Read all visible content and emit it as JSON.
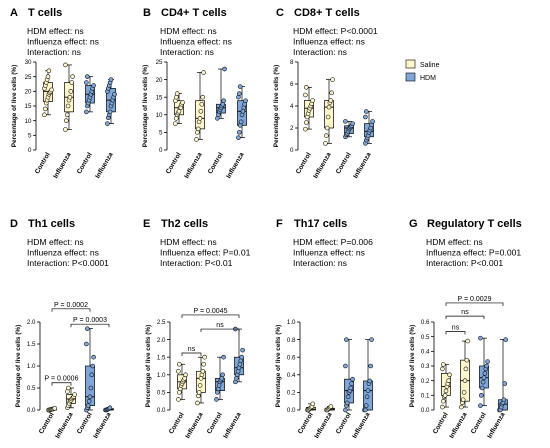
{
  "legend": {
    "items": [
      {
        "label": "Saline",
        "color": "#FFF7CC"
      },
      {
        "label": "HDM",
        "color": "#7EA6D9"
      }
    ]
  },
  "chart_data": [
    {
      "type": "box",
      "letter": "A",
      "title": "T cells",
      "stats": [
        "HDM effect: ns",
        "Influenza effect: ns",
        "Interaction: ns"
      ],
      "ylabel": "Percentage of live cells (%)",
      "ylim": [
        0,
        30
      ],
      "yticks": [
        0,
        5,
        10,
        15,
        20,
        25,
        30
      ],
      "categories": [
        "Control",
        "Influenza",
        "Control",
        "Influenza"
      ],
      "groups": [
        {
          "name": "Saline",
          "category": "Control",
          "q1": 16.5,
          "median": 20,
          "q3": 23,
          "min": 12,
          "max": 27,
          "points": [
            12,
            14,
            16,
            17,
            18,
            19,
            19.5,
            20,
            20.5,
            21,
            22,
            23,
            24,
            25,
            27
          ]
        },
        {
          "name": "Saline",
          "category": "Influenza",
          "q1": 13,
          "median": 18,
          "q3": 23,
          "min": 7,
          "max": 29,
          "points": [
            7,
            10,
            12,
            15,
            17,
            18,
            20,
            23,
            25,
            29
          ]
        },
        {
          "name": "HDM",
          "category": "Control",
          "q1": 16,
          "median": 19,
          "q3": 22,
          "min": 13,
          "max": 25,
          "points": [
            13,
            15,
            16,
            17,
            18,
            19,
            20,
            21,
            22,
            23,
            25
          ]
        },
        {
          "name": "HDM",
          "category": "Influenza",
          "q1": 13,
          "median": 17,
          "q3": 21,
          "min": 9,
          "max": 24,
          "points": [
            9,
            11,
            12,
            13,
            15,
            16,
            17,
            18,
            19,
            20,
            21,
            22,
            23,
            24
          ]
        }
      ],
      "brackets": []
    },
    {
      "type": "box",
      "letter": "B",
      "title": "CD4+ T cells",
      "stats": [
        "HDM effect: ns",
        "Influenza effect: ns",
        "Interaction: ns"
      ],
      "ylabel": "Percentage of live cells (%)",
      "ylim": [
        0,
        25
      ],
      "yticks": [
        0,
        5,
        10,
        15,
        20,
        25
      ],
      "categories": [
        "Control",
        "Influenza",
        "Control",
        "Influenza"
      ],
      "groups": [
        {
          "name": "Saline",
          "category": "Control",
          "q1": 10,
          "median": 12,
          "q3": 14,
          "min": 7.5,
          "max": 16,
          "points": [
            7.5,
            9,
            10,
            10.5,
            11,
            12,
            12,
            13,
            13.5,
            14,
            15,
            16
          ]
        },
        {
          "name": "Saline",
          "category": "Influenza",
          "q1": 6,
          "median": 9,
          "q3": 14,
          "min": 3,
          "max": 22,
          "points": [
            3,
            5,
            6,
            8,
            9,
            11,
            13,
            15,
            22
          ]
        },
        {
          "name": "HDM",
          "category": "Control",
          "q1": 10.5,
          "median": 12,
          "q3": 13,
          "min": 9,
          "max": 23,
          "points": [
            9,
            10,
            11,
            11.5,
            12,
            12.5,
            13,
            14,
            23
          ]
        },
        {
          "name": "HDM",
          "category": "Influenza",
          "q1": 7,
          "median": 11,
          "q3": 14,
          "min": 3.5,
          "max": 18,
          "points": [
            3.5,
            5,
            7,
            8,
            10,
            11,
            12,
            13,
            14,
            15,
            16,
            18
          ]
        }
      ],
      "brackets": []
    },
    {
      "type": "box",
      "letter": "C",
      "title": "CD8+ T cells",
      "stats": [
        "HDM effect: P<0.0001",
        "Influenza effect: ns",
        "Interaction: ns"
      ],
      "ylabel": "Percentage of live cells (%)",
      "ylim": [
        0,
        8
      ],
      "yticks": [
        0,
        2,
        4,
        6,
        8
      ],
      "categories": [
        "Control",
        "Influenza",
        "Control",
        "Influenza"
      ],
      "groups": [
        {
          "name": "Saline",
          "category": "Control",
          "q1": 3.0,
          "median": 3.8,
          "q3": 4.5,
          "min": 1.9,
          "max": 5.7,
          "points": [
            1.9,
            2.5,
            3.0,
            3.3,
            3.6,
            3.8,
            4.0,
            4.2,
            4.5,
            5.0,
            5.7
          ]
        },
        {
          "name": "Saline",
          "category": "Influenza",
          "q1": 2.0,
          "median": 3.9,
          "q3": 4.5,
          "min": 0.6,
          "max": 6.4,
          "points": [
            0.6,
            1.3,
            2.0,
            3.0,
            3.9,
            4.3,
            4.5,
            5.2,
            6.4
          ]
        },
        {
          "name": "HDM",
          "category": "Control",
          "q1": 1.5,
          "median": 2.0,
          "q3": 2.2,
          "min": 1.2,
          "max": 2.6,
          "points": [
            1.2,
            1.4,
            1.5,
            1.7,
            1.9,
            2.0,
            2.1,
            2.2,
            2.4,
            2.6
          ]
        },
        {
          "name": "HDM",
          "category": "Influenza",
          "q1": 1.2,
          "median": 1.7,
          "q3": 2.4,
          "min": 0.6,
          "max": 3.5,
          "points": [
            0.6,
            0.9,
            1.1,
            1.3,
            1.6,
            1.8,
            2.0,
            2.3,
            2.6,
            3.0,
            3.5
          ]
        }
      ],
      "brackets": []
    },
    {
      "type": "box",
      "letter": "D",
      "title": "Th1 cells",
      "stats": [
        "HDM effect: ns",
        "Influenza effect: ns",
        "Interaction: P<0.0001"
      ],
      "ylabel": "Percentage of live cells (%)",
      "ylim": [
        0,
        2.0
      ],
      "yticks": [
        0.0,
        0.5,
        1.0,
        1.5,
        2.0
      ],
      "categories": [
        "Control",
        "Influenza",
        "Control",
        "Influenza"
      ],
      "groups": [
        {
          "name": "Saline",
          "category": "Control",
          "q1": 0.0,
          "median": 0.01,
          "q3": 0.02,
          "min": 0.0,
          "max": 0.04,
          "points": [
            0.0,
            0.0,
            0.01,
            0.01,
            0.02,
            0.02,
            0.03,
            0.04
          ]
        },
        {
          "name": "Saline",
          "category": "Influenza",
          "q1": 0.15,
          "median": 0.25,
          "q3": 0.35,
          "min": 0.05,
          "max": 0.5,
          "points": [
            0.05,
            0.1,
            0.15,
            0.2,
            0.22,
            0.25,
            0.28,
            0.3,
            0.35,
            0.42,
            0.5
          ]
        },
        {
          "name": "HDM",
          "category": "Control",
          "q1": 0.1,
          "median": 0.3,
          "q3": 1.0,
          "min": 0.0,
          "max": 1.85,
          "points": [
            0.0,
            0.05,
            0.1,
            0.2,
            0.3,
            0.5,
            0.8,
            1.0,
            1.2,
            1.5,
            1.85
          ]
        },
        {
          "name": "HDM",
          "category": "Influenza",
          "q1": 0.0,
          "median": 0.01,
          "q3": 0.03,
          "min": 0.0,
          "max": 0.05,
          "points": [
            0.0,
            0.0,
            0.01,
            0.02,
            0.03,
            0.05
          ]
        }
      ],
      "brackets": [
        {
          "from": 0,
          "to": 1,
          "y": 0.62,
          "label": "P = 0.0006"
        },
        {
          "from": 1,
          "to": 3,
          "y": 1.95,
          "label": "P = 0.0003"
        },
        {
          "from": 0,
          "to": 2,
          "y": 2.3,
          "label": "P = 0.0002"
        }
      ]
    },
    {
      "type": "box",
      "letter": "E",
      "title": "Th2 cells",
      "stats": [
        "HDM effect: ns",
        "Influenza effect: P=0.01",
        "Interaction: P<0.01"
      ],
      "ylabel": "Percentage of live cells (%)",
      "ylim": [
        0,
        2.5
      ],
      "yticks": [
        0.0,
        0.5,
        1.0,
        1.5,
        2.0,
        2.5
      ],
      "categories": [
        "Control",
        "Influenza",
        "Control",
        "Influenza"
      ],
      "groups": [
        {
          "name": "Saline",
          "category": "Control",
          "q1": 0.6,
          "median": 0.8,
          "q3": 1.0,
          "min": 0.3,
          "max": 1.3,
          "points": [
            0.3,
            0.5,
            0.6,
            0.7,
            0.75,
            0.8,
            0.85,
            0.9,
            1.0,
            1.1,
            1.3
          ]
        },
        {
          "name": "Saline",
          "category": "Influenza",
          "q1": 0.5,
          "median": 0.9,
          "q3": 1.1,
          "min": 0.2,
          "max": 1.5,
          "points": [
            0.2,
            0.4,
            0.5,
            0.7,
            0.9,
            1.0,
            1.1,
            1.3,
            1.5
          ]
        },
        {
          "name": "HDM",
          "category": "Control",
          "q1": 0.55,
          "median": 0.8,
          "q3": 0.9,
          "min": 0.3,
          "max": 1.5,
          "points": [
            0.3,
            0.5,
            0.6,
            0.7,
            0.8,
            0.85,
            0.9,
            1.0,
            1.5
          ]
        },
        {
          "name": "HDM",
          "category": "Influenza",
          "q1": 1.0,
          "median": 1.2,
          "q3": 1.5,
          "min": 0.8,
          "max": 2.3,
          "points": [
            0.8,
            0.9,
            1.0,
            1.1,
            1.2,
            1.3,
            1.4,
            1.5,
            1.7,
            2.3
          ]
        }
      ],
      "brackets": [
        {
          "from": 0,
          "to": 1,
          "y": 1.62,
          "label": "ns"
        },
        {
          "from": 1,
          "to": 3,
          "y": 2.3,
          "label": "ns"
        },
        {
          "from": 0,
          "to": 3,
          "y": 2.7,
          "label": "P = 0.0045"
        }
      ]
    },
    {
      "type": "box",
      "letter": "F",
      "title": "Th17 cells",
      "stats": [
        "HDM effect: P=0.006",
        "Influenza effect: ns",
        "Interaction: ns"
      ],
      "ylabel": "Percentage of live cells (%)",
      "ylim": [
        0,
        1.0
      ],
      "yticks": [
        0.0,
        0.2,
        0.4,
        0.6,
        0.8,
        1.0
      ],
      "categories": [
        "Control",
        "Influenza",
        "Control",
        "Influenza"
      ],
      "groups": [
        {
          "name": "Saline",
          "category": "Control",
          "q1": 0.0,
          "median": 0.01,
          "q3": 0.03,
          "min": 0.0,
          "max": 0.07,
          "points": [
            0.0,
            0.0,
            0.01,
            0.02,
            0.03,
            0.04,
            0.07
          ]
        },
        {
          "name": "Saline",
          "category": "Influenza",
          "q1": 0.0,
          "median": 0.01,
          "q3": 0.02,
          "min": 0.0,
          "max": 0.04,
          "points": [
            0.0,
            0.0,
            0.01,
            0.02,
            0.03,
            0.04
          ]
        },
        {
          "name": "HDM",
          "category": "Control",
          "q1": 0.08,
          "median": 0.22,
          "q3": 0.35,
          "min": 0.0,
          "max": 0.8,
          "points": [
            0.0,
            0.05,
            0.08,
            0.15,
            0.2,
            0.22,
            0.25,
            0.3,
            0.35,
            0.5,
            0.8
          ]
        },
        {
          "name": "HDM",
          "category": "Influenza",
          "q1": 0.0,
          "median": 0.22,
          "q3": 0.33,
          "min": 0.0,
          "max": 0.8,
          "points": [
            0.0,
            0.0,
            0.05,
            0.15,
            0.22,
            0.3,
            0.33,
            0.5,
            0.8
          ]
        }
      ],
      "brackets": []
    },
    {
      "type": "box",
      "letter": "G",
      "title": "Regulatory T cells",
      "stats": [
        "HDM effect: ns",
        "Influenza effect: P=0.001",
        "Interaction: P<0.001"
      ],
      "ylabel": "Percentage of live cells (%)",
      "ylim": [
        0,
        0.6
      ],
      "yticks": [
        0.0,
        0.1,
        0.2,
        0.3,
        0.4,
        0.5,
        0.6
      ],
      "categories": [
        "Control",
        "Influenza",
        "Control",
        "Influenza"
      ],
      "groups": [
        {
          "name": "Saline",
          "category": "Control",
          "q1": 0.1,
          "median": 0.16,
          "q3": 0.25,
          "min": 0.02,
          "max": 0.31,
          "points": [
            0.02,
            0.06,
            0.09,
            0.1,
            0.13,
            0.16,
            0.18,
            0.2,
            0.24,
            0.28,
            0.31
          ]
        },
        {
          "name": "Saline",
          "category": "Influenza",
          "q1": 0.06,
          "median": 0.2,
          "q3": 0.34,
          "min": 0.02,
          "max": 0.47,
          "points": [
            0.02,
            0.05,
            0.07,
            0.12,
            0.2,
            0.28,
            0.34,
            0.47
          ]
        },
        {
          "name": "HDM",
          "category": "Control",
          "q1": 0.15,
          "median": 0.22,
          "q3": 0.3,
          "min": 0.03,
          "max": 0.49,
          "points": [
            0.03,
            0.1,
            0.15,
            0.19,
            0.22,
            0.25,
            0.28,
            0.3,
            0.33,
            0.49
          ]
        },
        {
          "name": "HDM",
          "category": "Influenza",
          "q1": 0.0,
          "median": 0.04,
          "q3": 0.07,
          "min": 0.0,
          "max": 0.48,
          "points": [
            0.0,
            0.0,
            0.02,
            0.04,
            0.05,
            0.07,
            0.18,
            0.48
          ]
        }
      ],
      "brackets": [
        {
          "from": 0,
          "to": 1,
          "y": 0.535,
          "label": "ns"
        },
        {
          "from": 0,
          "to": 2,
          "y": 0.64,
          "label": "ns"
        },
        {
          "from": 0,
          "to": 3,
          "y": 0.73,
          "label": "P = 0.0029"
        }
      ]
    }
  ]
}
